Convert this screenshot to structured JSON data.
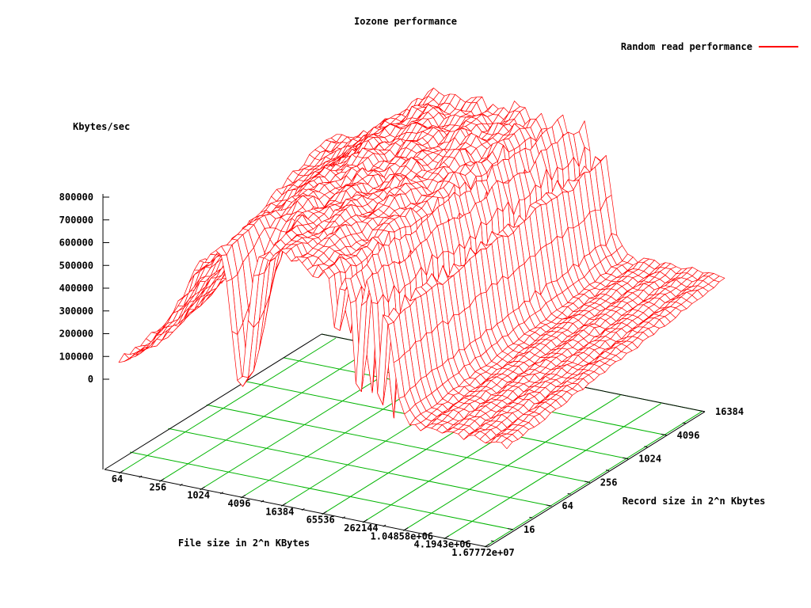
{
  "title": "Iozone performance",
  "legend": {
    "label": "Random read performance",
    "color": "#ff0000"
  },
  "chart_data": {
    "type": "surface",
    "title": "Iozone performance",
    "series_name": "Random read performance",
    "xlabel": "File size in 2^n KBytes",
    "ylabel": "Record size in 2^n Kbytes",
    "zlabel": "Kbytes/sec",
    "x_scale": "log2",
    "y_scale": "log2",
    "x_tick_labels": [
      "64",
      "256",
      "1024",
      "4096",
      "16384",
      "65536",
      "262144",
      "1.04858e+06",
      "4.1943e+06",
      "1.67772e+07"
    ],
    "x_file_size_kb": [
      64,
      256,
      1024,
      4096,
      16384,
      65536,
      262144,
      1048576,
      4194304,
      16777216
    ],
    "y_tick_labels": [
      "16",
      "64",
      "256",
      "1024",
      "4096",
      "16384"
    ],
    "y_record_size_kb": [
      16,
      64,
      256,
      1024,
      4096,
      16384
    ],
    "z_tick_labels": [
      "0",
      "100000",
      "200000",
      "300000",
      "400000",
      "500000",
      "600000",
      "700000",
      "800000"
    ],
    "z_ticks": [
      0,
      100000,
      200000,
      300000,
      400000,
      500000,
      600000,
      700000,
      800000
    ],
    "zlim": [
      0,
      800000
    ],
    "grid": true,
    "legend_position": "top-right",
    "z_kbytes_per_sec": [
      [
        110000,
        180000,
        260000,
        330000,
        400000,
        440000
      ],
      [
        240000,
        300000,
        360000,
        420000,
        460000,
        490000
      ],
      [
        520000,
        560000,
        600000,
        640000,
        670000,
        690000
      ],
      [
        700000,
        705000,
        715000,
        725000,
        735000,
        745000
      ],
      [
        680000,
        695000,
        705000,
        715000,
        730000,
        745000
      ],
      [
        250000,
        300000,
        350000,
        420000,
        520000,
        620000
      ],
      [
        630000,
        650000,
        665000,
        685000,
        700000,
        715000
      ],
      [
        120000,
        150000,
        200000,
        280000,
        380000,
        480000
      ],
      [
        90000,
        100000,
        115000,
        135000,
        155000,
        170000
      ],
      [
        80000,
        90000,
        105000,
        125000,
        145000,
        160000
      ]
    ],
    "colors": {
      "surface": "#ff0000",
      "base_grid": "#00b400",
      "axis": "#000000",
      "text": "#000000",
      "background": "#ffffff"
    }
  }
}
